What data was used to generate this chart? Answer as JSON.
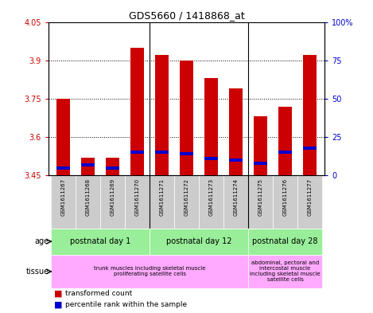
{
  "title": "GDS5660 / 1418868_at",
  "samples": [
    "GSM1611267",
    "GSM1611268",
    "GSM1611269",
    "GSM1611270",
    "GSM1611271",
    "GSM1611272",
    "GSM1611273",
    "GSM1611274",
    "GSM1611275",
    "GSM1611276",
    "GSM1611277"
  ],
  "transformed_count": [
    3.75,
    3.52,
    3.52,
    3.95,
    3.92,
    3.9,
    3.83,
    3.79,
    3.68,
    3.72,
    3.92
  ],
  "percentile_rank": [
    5,
    7,
    5,
    15,
    15,
    14,
    11,
    10,
    8,
    15,
    18
  ],
  "ymin": 3.45,
  "ymax": 4.05,
  "yticks": [
    3.45,
    3.6,
    3.75,
    3.9,
    4.05
  ],
  "ytick_labels": [
    "3.45",
    "3.6",
    "3.75",
    "3.9",
    "4.05"
  ],
  "right_yticks": [
    0,
    25,
    50,
    75,
    100
  ],
  "right_ytick_labels": [
    "0",
    "25",
    "50",
    "75",
    "100%"
  ],
  "grid_dotted_at": [
    3.6,
    3.75,
    3.9
  ],
  "bar_color": "#cc0000",
  "blue_color": "#0000cc",
  "bar_width": 0.55,
  "age_groups": [
    {
      "label": "postnatal day 1",
      "start": 0,
      "end": 3,
      "color": "#99ee99"
    },
    {
      "label": "postnatal day 12",
      "start": 4,
      "end": 7,
      "color": "#99ee99"
    },
    {
      "label": "postnatal day 28",
      "start": 8,
      "end": 10,
      "color": "#99ee99"
    }
  ],
  "tissue_groups": [
    {
      "label": "trunk muscles including skeletal muscle\nproliferating satellite cells",
      "start": 0,
      "end": 7,
      "color": "#ffaaff"
    },
    {
      "label": "abdominal, pectoral and\nintercostal muscle\nincluding skeletal muscle\nsatellite cells",
      "start": 8,
      "end": 10,
      "color": "#ffaaff"
    }
  ],
  "left_axis_color": "#cc0000",
  "right_axis_color": "#0000cc",
  "sample_bg_color": "#cccccc",
  "legend_items": [
    {
      "color": "#cc0000",
      "label": "transformed count"
    },
    {
      "color": "#0000cc",
      "label": "percentile rank within the sample"
    }
  ]
}
